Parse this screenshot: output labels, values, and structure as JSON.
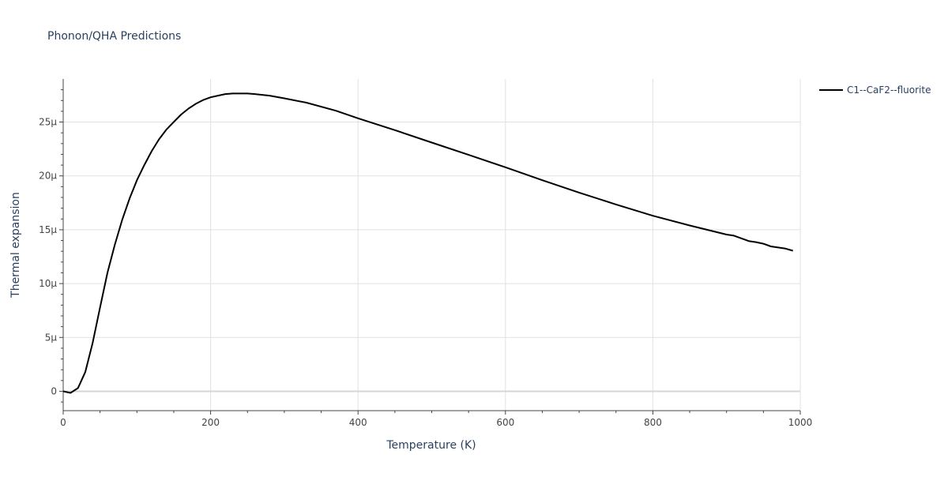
{
  "chart_data": {
    "type": "line",
    "title": "Phonon/QHA Predictions",
    "xlabel": "Temperature (K)",
    "ylabel": "Thermal expansion",
    "xlim": [
      0,
      1000
    ],
    "ylim": [
      -1.8e-06,
      2.9e-05
    ],
    "x_ticks": [
      0,
      200,
      400,
      600,
      800,
      1000
    ],
    "x_tick_labels": [
      "0",
      "200",
      "400",
      "600",
      "800",
      "1000"
    ],
    "y_ticks": [
      0,
      5e-06,
      1e-05,
      1.5e-05,
      2e-05,
      2.5e-05
    ],
    "y_tick_labels": [
      "0",
      "5μ",
      "10μ",
      "15μ",
      "20μ",
      "25μ"
    ],
    "grid": true,
    "legend_position": "top-right",
    "line_color": "#000000",
    "series": [
      {
        "name": "C1--CaF2--fluorite",
        "x": [
          0,
          10,
          20,
          30,
          40,
          50,
          60,
          70,
          80,
          90,
          100,
          110,
          120,
          130,
          140,
          150,
          160,
          170,
          180,
          190,
          200,
          210,
          220,
          230,
          240,
          250,
          260,
          280,
          300,
          330,
          370,
          400,
          450,
          500,
          550,
          600,
          650,
          700,
          750,
          800,
          850,
          900,
          910,
          920,
          930,
          940,
          950,
          960,
          970,
          980,
          990
        ],
        "y": [
          0,
          -1.5e-07,
          3e-07,
          1.8e-06,
          4.5e-06,
          7.8e-06,
          1.1e-05,
          1.36e-05,
          1.59e-05,
          1.79e-05,
          1.96e-05,
          2.1e-05,
          2.23e-05,
          2.34e-05,
          2.43e-05,
          2.5e-05,
          2.57e-05,
          2.625e-05,
          2.67e-05,
          2.705e-05,
          2.73e-05,
          2.745e-05,
          2.76e-05,
          2.765e-05,
          2.765e-05,
          2.765e-05,
          2.76e-05,
          2.745e-05,
          2.72e-05,
          2.68e-05,
          2.605e-05,
          2.535e-05,
          2.425e-05,
          2.31e-05,
          2.195e-05,
          2.08e-05,
          1.96e-05,
          1.845e-05,
          1.735e-05,
          1.63e-05,
          1.54e-05,
          1.455e-05,
          1.445e-05,
          1.42e-05,
          1.395e-05,
          1.385e-05,
          1.37e-05,
          1.345e-05,
          1.335e-05,
          1.325e-05,
          1.305e-05
        ]
      }
    ]
  }
}
